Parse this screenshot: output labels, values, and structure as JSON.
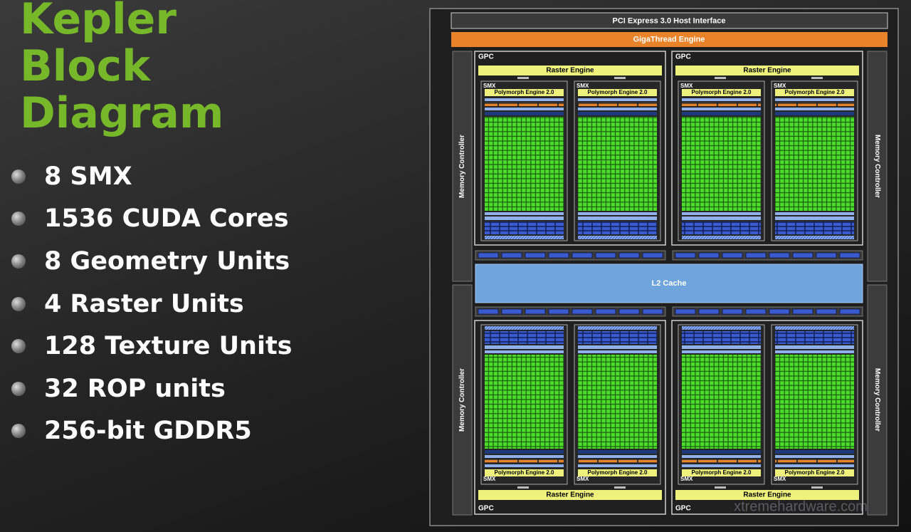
{
  "title": "Kepler Block Diagram",
  "bullets": [
    "8 SMX",
    "1536 CUDA Cores",
    "8 Geometry Units",
    "4 Raster Units",
    "128 Texture Units",
    "32 ROP units",
    "256-bit GDDR5"
  ],
  "diagram": {
    "host_interface": "PCI Express 3.0 Host Interface",
    "gigathread": "GigaThread Engine",
    "l2_cache": "L2 Cache",
    "memory_controllers": [
      "Memory Controller",
      "Memory Controller",
      "Memory Controller",
      "Memory Controller"
    ],
    "gpcs": [
      {
        "label": "GPC",
        "raster_engine": "Raster Engine",
        "smx": [
          {
            "label": "SMX",
            "polymorph": "Polymorph Engine 2.0"
          },
          {
            "label": "SMX",
            "polymorph": "Polymorph Engine 2.0"
          }
        ]
      },
      {
        "label": "GPC",
        "raster_engine": "Raster Engine",
        "smx": [
          {
            "label": "SMX",
            "polymorph": "Polymorph Engine 2.0"
          },
          {
            "label": "SMX",
            "polymorph": "Polymorph Engine 2.0"
          }
        ]
      },
      {
        "label": "GPC",
        "raster_engine": "Raster Engine",
        "smx": [
          {
            "label": "SMX",
            "polymorph": "Polymorph Engine 2.0"
          },
          {
            "label": "SMX",
            "polymorph": "Polymorph Engine 2.0"
          }
        ]
      },
      {
        "label": "GPC",
        "raster_engine": "Raster Engine",
        "smx": [
          {
            "label": "SMX",
            "polymorph": "Polymorph Engine 2.0"
          },
          {
            "label": "SMX",
            "polymorph": "Polymorph Engine 2.0"
          }
        ]
      }
    ]
  },
  "watermark": "xtremehardware.com"
}
